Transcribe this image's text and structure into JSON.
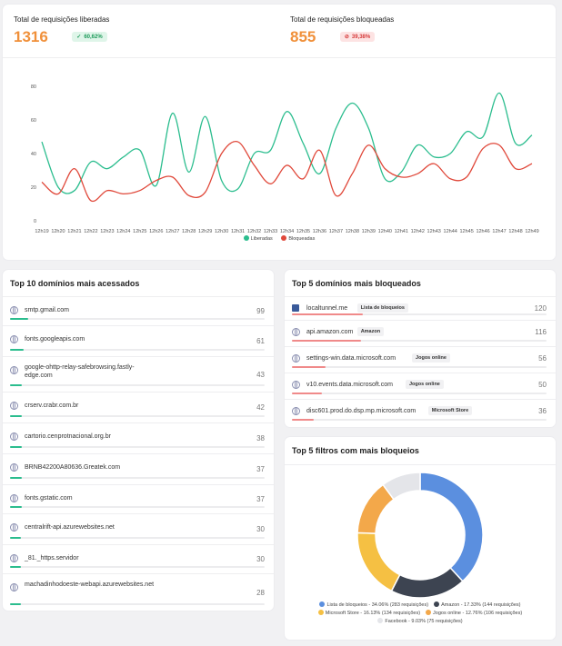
{
  "stats": {
    "allowed_label": "Total de requisições liberadas",
    "allowed_value": "1316",
    "allowed_badge": "60,62%",
    "blocked_label": "Total de requisições bloqueadas",
    "blocked_value": "855",
    "blocked_badge": "39,38%"
  },
  "colors": {
    "accent": "#f0903a",
    "green": "#2bbd8e",
    "red": "#e0483a",
    "bar_green": "#2bbd8e",
    "bar_red": "#f08a8a"
  },
  "chart_data": {
    "type": "line",
    "x": [
      "12h19",
      "12h20",
      "12h21",
      "12h22",
      "12h23",
      "12h24",
      "12h25",
      "12h26",
      "12h27",
      "12h28",
      "12h29",
      "12h30",
      "12h31",
      "12h32",
      "12h33",
      "12h34",
      "12h35",
      "12h36",
      "12h37",
      "12h38",
      "12h39",
      "12h40",
      "12h41",
      "12h42",
      "12h43",
      "12h44",
      "12h45",
      "12h46",
      "12h47",
      "12h48",
      "12h49"
    ],
    "yticks": [
      0,
      20,
      40,
      60,
      80
    ],
    "ylim": [
      0,
      80
    ],
    "series": [
      {
        "name": "Liberadas",
        "color": "#2bbd8e",
        "values": [
          47,
          20,
          18,
          35,
          31,
          38,
          42,
          21,
          64,
          29,
          62,
          24,
          19,
          40,
          42,
          65,
          46,
          28,
          55,
          70,
          55,
          25,
          29,
          45,
          38,
          40,
          53,
          50,
          76,
          46,
          51
        ]
      },
      {
        "name": "Bloqueadas",
        "color": "#e0483a",
        "values": [
          23,
          16,
          31,
          12,
          18,
          16,
          18,
          24,
          26,
          15,
          17,
          40,
          47,
          33,
          22,
          33,
          25,
          42,
          15,
          28,
          45,
          31,
          26,
          28,
          34,
          25,
          26,
          43,
          45,
          31,
          34
        ]
      }
    ]
  },
  "top_domains": {
    "title": "Top 10 domínios mais acessados",
    "max": 99,
    "items": [
      {
        "name": "smtp.gmail.com",
        "count": 99
      },
      {
        "name": "fonts.googleapis.com",
        "count": 61
      },
      {
        "name": "google-ohttp-relay-safebrowsing.fastly-edge.com",
        "count": 43
      },
      {
        "name": "crserv.crabr.com.br",
        "count": 42
      },
      {
        "name": "cartorio.cenprotnacional.org.br",
        "count": 38
      },
      {
        "name": "BRNB42200A80636.Greatek.com",
        "count": 37
      },
      {
        "name": "fonts.gstatic.com",
        "count": 37
      },
      {
        "name": "centralrift-api.azurewebsites.net",
        "count": 30
      },
      {
        "name": "_81._https.servidor",
        "count": 30
      },
      {
        "name": "machadinhodoeste-webapi.azurewebsites.net",
        "count": 28
      }
    ]
  },
  "top_blocked": {
    "title": "Top 5 domínios mais bloqueados",
    "max": 120,
    "items": [
      {
        "name": "localtunnel.me",
        "tag": "Lista de bloqueios",
        "count": 120,
        "icon": "localtunnel-icon"
      },
      {
        "name": "api.amazon.com",
        "tag": "Amazon",
        "count": 116,
        "icon": "globe-icon"
      },
      {
        "name": "settings-win.data.microsoft.com",
        "tag": "Jogos online",
        "count": 56,
        "icon": "globe-icon"
      },
      {
        "name": "v10.events.data.microsoft.com",
        "tag": "Jogos online",
        "count": 50,
        "icon": "globe-icon"
      },
      {
        "name": "disc601.prod.do.dsp.mp.microsoft.com",
        "tag": "Microsoft Store",
        "count": 36,
        "icon": "globe-icon"
      }
    ]
  },
  "top_filters": {
    "title": "Top 5 filtros com mais bloqueios",
    "slices": [
      {
        "label": "Lista de bloqueios - 34.06% (283 requisições)",
        "value": 34.06,
        "color": "#5b8fdf"
      },
      {
        "label": "Amazon - 17.33% (144 requisições)",
        "value": 17.33,
        "color": "#3d4451"
      },
      {
        "label": "Microsoft Store - 16.13% (134 requisições)",
        "value": 16.13,
        "color": "#f5c043"
      },
      {
        "label": "Jogos online - 12.76% (106 requisições)",
        "value": 12.76,
        "color": "#f3a84a"
      },
      {
        "label": "Facebook - 9.03% (75 requisições)",
        "value": 9.03,
        "color": "#e4e5e9"
      }
    ]
  }
}
